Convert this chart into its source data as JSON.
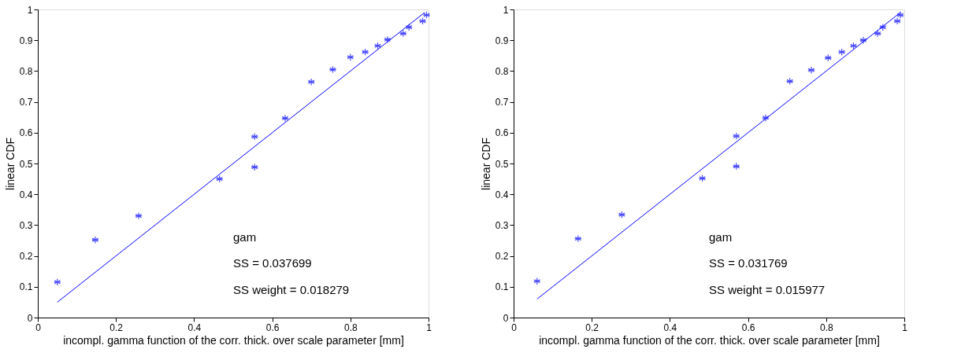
{
  "chart_data": [
    {
      "type": "scatter",
      "xlabel": "incompl. gamma function of the corr. thick. over scale parameter [mm]",
      "ylabel": "linear CDF",
      "xlim": [
        0,
        1
      ],
      "ylim": [
        0,
        1
      ],
      "xticks": [
        0,
        0.2,
        0.4,
        0.6,
        0.8,
        1
      ],
      "yticks": [
        0,
        0.1,
        0.2,
        0.3,
        0.4,
        0.5,
        0.6,
        0.7,
        0.8,
        0.9,
        1
      ],
      "grid": false,
      "annotations": [
        "gam",
        "SS = 0.037699",
        "SS weight = 0.018279"
      ],
      "series": [
        {
          "type": "scatter",
          "color": "#0000ff",
          "marker": "cross",
          "x": [
            0.05,
            0.147,
            0.258,
            0.465,
            0.555,
            0.555,
            0.633,
            0.7,
            0.755,
            0.8,
            0.838,
            0.87,
            0.895,
            0.935,
            0.95,
            0.985,
            0.995
          ],
          "values": [
            0.115,
            0.252,
            0.33,
            0.45,
            0.488,
            0.587,
            0.647,
            0.765,
            0.805,
            0.845,
            0.862,
            0.882,
            0.902,
            0.922,
            0.942,
            0.962,
            0.982
          ]
        },
        {
          "type": "line",
          "color": "#0000ff",
          "line_style": "solid",
          "x": [
            0.05,
            0.99
          ],
          "values": [
            0.05,
            0.99
          ]
        }
      ]
    },
    {
      "type": "scatter",
      "xlabel": "incompl. gamma function of the corr. thick. over scale parameter [mm]",
      "ylabel": "linear CDF",
      "xlim": [
        0,
        1
      ],
      "ylim": [
        0,
        1
      ],
      "xticks": [
        0,
        0.2,
        0.4,
        0.6,
        0.8,
        1
      ],
      "yticks": [
        0,
        0.1,
        0.2,
        0.3,
        0.4,
        0.5,
        0.6,
        0.7,
        0.8,
        0.9,
        1
      ],
      "grid": false,
      "annotations": [
        "gam",
        "SS = 0.031769",
        "SS weight = 0.015977"
      ],
      "series": [
        {
          "type": "scatter",
          "color": "#0000ff",
          "marker": "cross",
          "x": [
            0.06,
            0.165,
            0.277,
            0.483,
            0.57,
            0.57,
            0.645,
            0.707,
            0.762,
            0.805,
            0.84,
            0.87,
            0.895,
            0.932,
            0.945,
            0.982,
            0.99
          ],
          "values": [
            0.118,
            0.256,
            0.334,
            0.452,
            0.491,
            0.589,
            0.648,
            0.767,
            0.803,
            0.843,
            0.862,
            0.882,
            0.9,
            0.922,
            0.942,
            0.962,
            0.982
          ]
        },
        {
          "type": "line",
          "color": "#0000ff",
          "line_style": "solid",
          "x": [
            0.06,
            0.99
          ],
          "values": [
            0.06,
            0.99
          ]
        }
      ]
    }
  ]
}
